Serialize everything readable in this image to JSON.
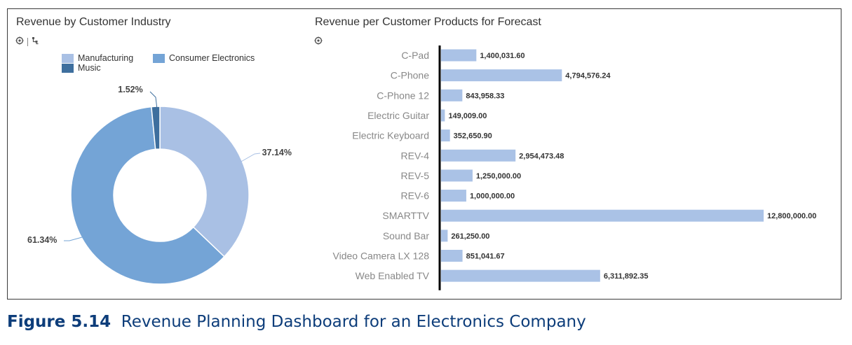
{
  "colors": {
    "manufacturing": "#a9c0e4",
    "consumer_electronics": "#74a4d6",
    "music": "#3e6f9e",
    "bar": "#aac2e6",
    "caption": "#0d3d7a"
  },
  "icons": [
    "hierarchy-icon",
    "drill-icon"
  ],
  "caption": {
    "label": "Figure 5.14",
    "text": "Revenue Planning Dashboard for an Electronics Company"
  },
  "chart_data": [
    {
      "type": "pie",
      "variant": "donut",
      "title": "Revenue by Customer Industry",
      "legend_position": "top",
      "slices": [
        {
          "name": "Manufacturing",
          "value": 37.14,
          "label": "37.14%",
          "color": "#a9c0e4"
        },
        {
          "name": "Consumer Electronics",
          "value": 61.34,
          "label": "61.34%",
          "color": "#74a4d6"
        },
        {
          "name": "Music",
          "value": 1.52,
          "label": "1.52%",
          "color": "#3e6f9e"
        }
      ]
    },
    {
      "type": "bar",
      "orientation": "horizontal",
      "title": "Revenue per Customer Products for Forecast",
      "grid": false,
      "xlim": [
        0,
        12800000
      ],
      "categories": [
        "C-Pad",
        "C-Phone",
        "C-Phone 12",
        "Electric Guitar",
        "Electric Keyboard",
        "REV-4",
        "REV-5",
        "REV-6",
        "SMARTTV",
        "Sound Bar",
        "Video Camera LX 128",
        "Web Enabled TV"
      ],
      "values": [
        1400031.6,
        4794576.24,
        843958.33,
        149009.0,
        352650.9,
        2954473.48,
        1250000.0,
        1000000.0,
        12800000.0,
        261250.0,
        851041.67,
        6311892.35
      ],
      "value_labels": [
        "1,400,031.60",
        "4,794,576.24",
        "843,958.33",
        "149,009.00",
        "352,650.90",
        "2,954,473.48",
        "1,250,000.00",
        "1,000,000.00",
        "12,800,000.00",
        "261,250.00",
        "851,041.67",
        "6,311,892.35"
      ]
    }
  ]
}
